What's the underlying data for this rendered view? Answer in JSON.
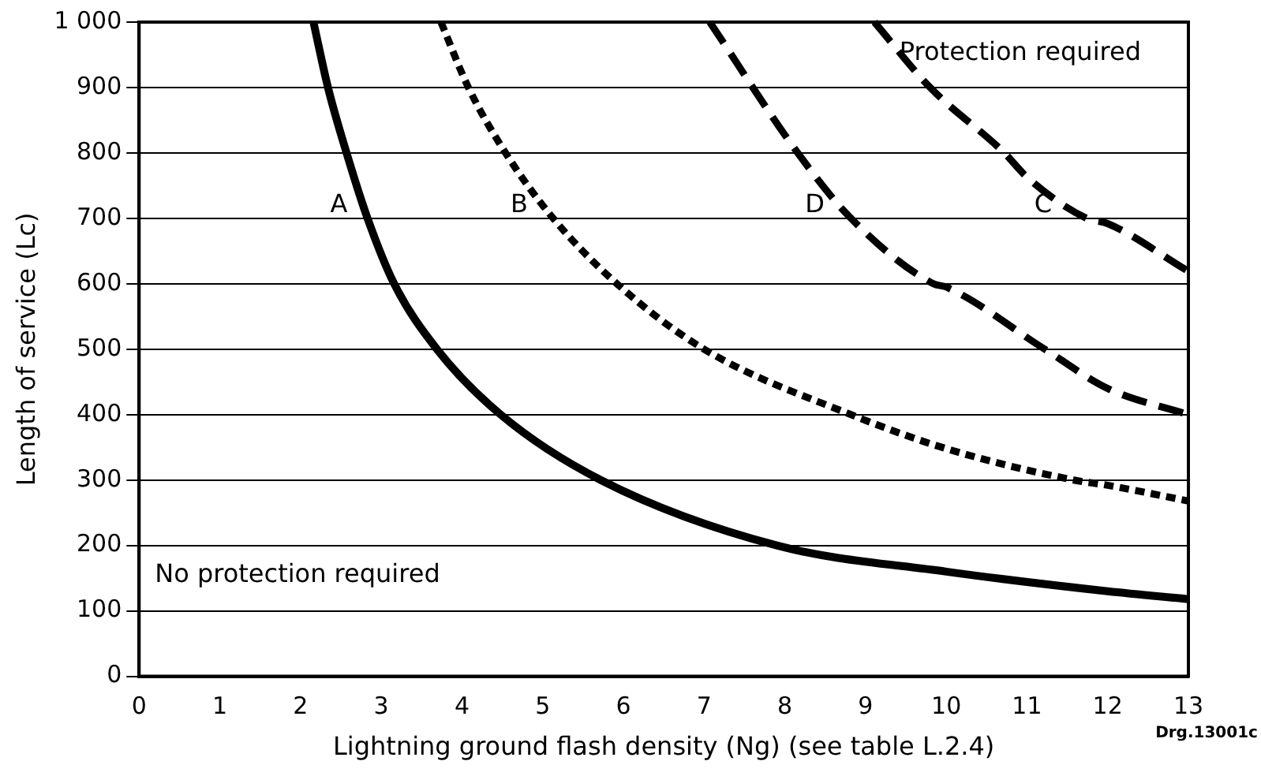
{
  "chart_data": {
    "type": "line",
    "xlabel": "Lightning ground flash density (Ng) (see table L.2.4)",
    "ylabel": "Length of service (Lc)",
    "xlim": [
      0,
      13
    ],
    "xticks": [
      0,
      1,
      2,
      3,
      4,
      5,
      6,
      7,
      8,
      9,
      10,
      11,
      12,
      13
    ],
    "ylim": [
      0,
      1000
    ],
    "yticks": [
      0,
      100,
      200,
      300,
      400,
      500,
      600,
      700,
      800,
      900,
      {
        "value": 1000,
        "label": "1 000"
      }
    ],
    "grid": "y",
    "legend": false,
    "marker": "none",
    "series": [
      {
        "name": "A",
        "color": "#000000",
        "line_style": "solid",
        "x": [
          2.16,
          2.34,
          2.57,
          2.83,
          3.16,
          3.69,
          4.48,
          5.72,
          7.9,
          10,
          12,
          13
        ],
        "values": [
          1000,
          900,
          800,
          700,
          600,
          500,
          400,
          300,
          200,
          160,
          130,
          118
        ]
      },
      {
        "name": "B",
        "color": "#000000",
        "line_style": "dotted",
        "x": [
          3.74,
          4.08,
          4.54,
          5.13,
          5.92,
          7.0,
          8.82,
          10,
          11.58,
          12,
          13
        ],
        "values": [
          1000,
          900,
          800,
          700,
          600,
          500,
          400,
          348,
          300,
          292,
          268
        ]
      },
      {
        "name": "C",
        "color": "#000000",
        "line_style": "dashed",
        "x": [
          9.11,
          9.8,
          10.72,
          11,
          11.74,
          12,
          13
        ],
        "values": [
          1000,
          900,
          800,
          763,
          700,
          692,
          619
        ]
      },
      {
        "name": "D",
        "color": "#000000",
        "line_style": "dashed",
        "x": [
          7.07,
          8.16,
          8.82,
          9.84,
          10,
          11.22,
          12,
          13
        ],
        "values": [
          1000,
          800,
          700,
          600,
          595,
          500,
          440,
          400
        ]
      }
    ],
    "annotations": [
      "Protection required",
      "No protection required",
      "Drg.13001c"
    ]
  }
}
